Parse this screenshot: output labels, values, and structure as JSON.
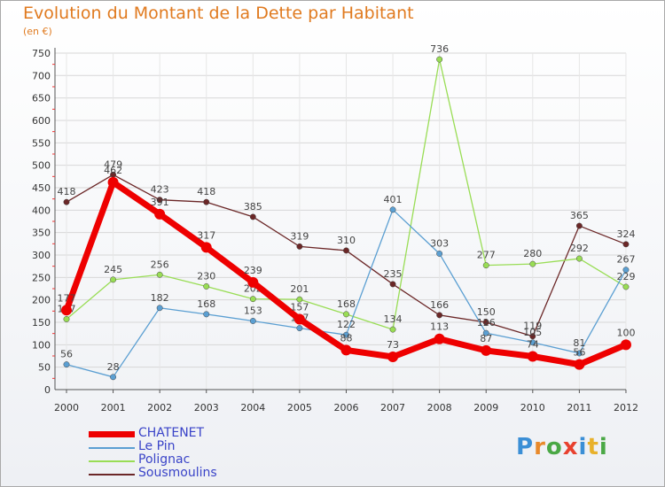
{
  "title": "Evolution du Montant de la Dette par Habitant",
  "subtitle": "(en €)",
  "logo": {
    "letters": [
      "P",
      "r",
      "o",
      "x",
      "i",
      "t",
      "i"
    ],
    "colors": [
      "#3b8fd6",
      "#e8892b",
      "#4aa845",
      "#e8412f",
      "#3b8fd6",
      "#e8b12b",
      "#4aa845"
    ]
  },
  "chart_data": {
    "type": "line",
    "x": [
      "2000",
      "2001",
      "2002",
      "2003",
      "2004",
      "2005",
      "2006",
      "2007",
      "2008",
      "2009",
      "2010",
      "2011",
      "2012"
    ],
    "yticks": [
      0,
      50,
      100,
      150,
      200,
      250,
      300,
      350,
      400,
      450,
      500,
      550,
      600,
      650,
      700,
      750
    ],
    "ylim": [
      0,
      750
    ],
    "series": [
      {
        "name": "Sousmoulins",
        "color": "#6b2727",
        "values": [
          418,
          479,
          423,
          418,
          385,
          319,
          310,
          235,
          166,
          150,
          119,
          365,
          324
        ]
      },
      {
        "name": "Polignac",
        "color": "#99dd55",
        "values": [
          157,
          245,
          256,
          230,
          202,
          201,
          168,
          134,
          736,
          277,
          280,
          292,
          229
        ]
      },
      {
        "name": "Le Pin",
        "color": "#5b9fd2",
        "values": [
          56,
          28,
          182,
          168,
          153,
          137,
          122,
          401,
          303,
          126,
          105,
          81,
          267
        ]
      },
      {
        "name": "CHATENET",
        "color": "#ee0000",
        "values": [
          177,
          462,
          391,
          317,
          239,
          157,
          88,
          73,
          113,
          87,
          74,
          56,
          100
        ]
      }
    ],
    "legend_order": [
      "CHATENET",
      "Le Pin",
      "Polignac",
      "Sousmoulins"
    ]
  }
}
